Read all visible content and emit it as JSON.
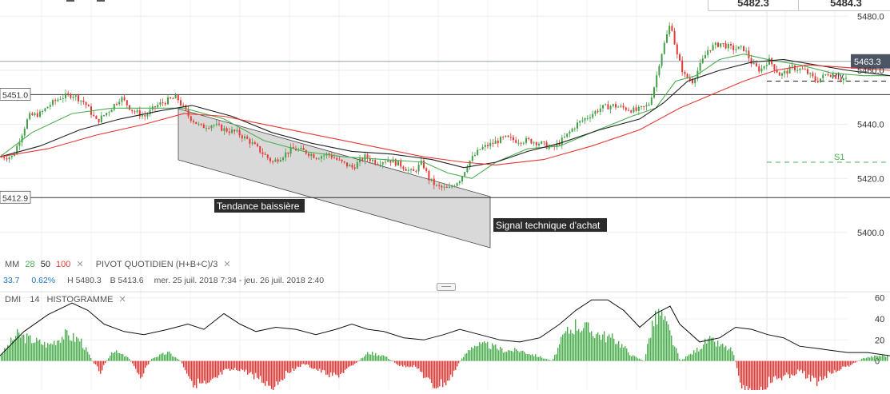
{
  "quote": {
    "bid": "5482.3",
    "ask": "5484.3"
  },
  "chart_data": [
    {
      "type": "candlestick",
      "instrument_info": {
        "high_label": "H 5480.3",
        "low_label": "B 5413.6",
        "range_label": "mer. 25 juil. 2018 7:34 - jeu. 26 juil. 2018 2:40",
        "change": "33.7",
        "change_pct": "0.62%"
      },
      "ylim": [
        5392,
        5486
      ],
      "yticks": [
        5400.0,
        5420.0,
        5440.0,
        5460.0,
        5480.0
      ],
      "ytick_labels": [
        "5400.0",
        "5420.0",
        "5440.0",
        "5460.0",
        "5480.0"
      ],
      "close_path": [
        [
          0,
          5428
        ],
        [
          15,
          5428
        ],
        [
          35,
          5443
        ],
        [
          50,
          5444
        ],
        [
          60,
          5447
        ],
        [
          75,
          5450
        ],
        [
          90,
          5451
        ],
        [
          105,
          5448
        ],
        [
          120,
          5441
        ],
        [
          135,
          5445
        ],
        [
          150,
          5450
        ],
        [
          165,
          5445
        ],
        [
          180,
          5443
        ],
        [
          195,
          5447
        ],
        [
          210,
          5449
        ],
        [
          220,
          5450
        ],
        [
          235,
          5443
        ],
        [
          250,
          5439
        ],
        [
          265,
          5440
        ],
        [
          280,
          5438
        ],
        [
          295,
          5437
        ],
        [
          310,
          5434
        ],
        [
          325,
          5430
        ],
        [
          340,
          5426
        ],
        [
          350,
          5428
        ],
        [
          365,
          5431
        ],
        [
          380,
          5430
        ],
        [
          395,
          5428
        ],
        [
          410,
          5429
        ],
        [
          425,
          5426
        ],
        [
          440,
          5424
        ],
        [
          455,
          5428
        ],
        [
          470,
          5426
        ],
        [
          485,
          5427
        ],
        [
          500,
          5425
        ],
        [
          515,
          5422
        ],
        [
          527,
          5426
        ],
        [
          535,
          5420
        ],
        [
          545,
          5417
        ],
        [
          560,
          5416
        ],
        [
          575,
          5420
        ],
        [
          585,
          5426
        ],
        [
          600,
          5431
        ],
        [
          615,
          5433
        ],
        [
          630,
          5435
        ],
        [
          645,
          5434
        ],
        [
          660,
          5434
        ],
        [
          675,
          5433
        ],
        [
          690,
          5431
        ],
        [
          705,
          5435
        ],
        [
          720,
          5440
        ],
        [
          735,
          5443
        ],
        [
          750,
          5446
        ],
        [
          765,
          5447
        ],
        [
          780,
          5446
        ],
        [
          795,
          5445
        ],
        [
          810,
          5447
        ],
        [
          818,
          5455
        ],
        [
          825,
          5465
        ],
        [
          832,
          5472
        ],
        [
          838,
          5478
        ],
        [
          845,
          5466
        ],
        [
          855,
          5458
        ],
        [
          865,
          5456
        ],
        [
          875,
          5462
        ],
        [
          885,
          5468
        ],
        [
          900,
          5470
        ],
        [
          915,
          5468
        ],
        [
          930,
          5468
        ],
        [
          940,
          5462
        ],
        [
          950,
          5460
        ],
        [
          960,
          5464
        ],
        [
          975,
          5458
        ],
        [
          990,
          5461
        ],
        [
          1005,
          5460
        ],
        [
          1020,
          5456
        ],
        [
          1035,
          5459
        ],
        [
          1050,
          5457
        ],
        [
          1065,
          5457
        ],
        [
          1080,
          5458
        ],
        [
          1095,
          5459
        ],
        [
          1110,
          5459
        ]
      ],
      "moving_averages": [
        {
          "name": "28",
          "color": "#4caf50",
          "points": [
            [
              0,
              5428
            ],
            [
              40,
              5437
            ],
            [
              90,
              5444
            ],
            [
              140,
              5446
            ],
            [
              190,
              5446
            ],
            [
              230,
              5446
            ],
            [
              280,
              5442
            ],
            [
              330,
              5434
            ],
            [
              380,
              5430
            ],
            [
              430,
              5428
            ],
            [
              480,
              5427
            ],
            [
              530,
              5426
            ],
            [
              560,
              5422
            ],
            [
              590,
              5420
            ],
            [
              620,
              5426
            ],
            [
              660,
              5431
            ],
            [
              700,
              5432
            ],
            [
              740,
              5437
            ],
            [
              790,
              5443
            ],
            [
              820,
              5446
            ],
            [
              845,
              5456
            ],
            [
              870,
              5458
            ],
            [
              900,
              5464
            ],
            [
              930,
              5466
            ],
            [
              960,
              5464
            ],
            [
              1000,
              5462
            ],
            [
              1040,
              5459
            ],
            [
              1080,
              5458
            ],
            [
              1113,
              5458
            ]
          ]
        },
        {
          "name": "50",
          "color": "#222222",
          "points": [
            [
              0,
              5428
            ],
            [
              50,
              5432
            ],
            [
              100,
              5438
            ],
            [
              150,
              5442
            ],
            [
              200,
              5445
            ],
            [
              240,
              5447
            ],
            [
              290,
              5443
            ],
            [
              340,
              5437
            ],
            [
              390,
              5433
            ],
            [
              440,
              5430
            ],
            [
              490,
              5429
            ],
            [
              540,
              5427
            ],
            [
              580,
              5424
            ],
            [
              620,
              5426
            ],
            [
              660,
              5430
            ],
            [
              700,
              5433
            ],
            [
              750,
              5438
            ],
            [
              800,
              5442
            ],
            [
              830,
              5448
            ],
            [
              860,
              5456
            ],
            [
              900,
              5460
            ],
            [
              940,
              5463
            ],
            [
              980,
              5464
            ],
            [
              1020,
              5462
            ],
            [
              1060,
              5460
            ],
            [
              1113,
              5458
            ]
          ]
        },
        {
          "name": "100",
          "color": "#e53935",
          "points": [
            [
              0,
              5428
            ],
            [
              60,
              5431
            ],
            [
              120,
              5436
            ],
            [
              180,
              5440
            ],
            [
              230,
              5444
            ],
            [
              280,
              5443
            ],
            [
              330,
              5440
            ],
            [
              380,
              5437
            ],
            [
              430,
              5434
            ],
            [
              480,
              5431
            ],
            [
              530,
              5428
            ],
            [
              580,
              5426
            ],
            [
              620,
              5425
            ],
            [
              680,
              5427
            ],
            [
              740,
              5432
            ],
            [
              800,
              5438
            ],
            [
              850,
              5446
            ],
            [
              890,
              5451
            ],
            [
              930,
              5456
            ],
            [
              970,
              5460
            ],
            [
              1010,
              5462
            ],
            [
              1060,
              5461
            ],
            [
              1113,
              5460
            ]
          ]
        }
      ],
      "horizontal_levels": [
        {
          "value": 5451.0,
          "label": "5451.0",
          "color": "#333333"
        },
        {
          "value": 5412.9,
          "label": "5412.9",
          "color": "#333333"
        },
        {
          "value": 5463.3,
          "label": "5463.3",
          "color": "#8894a3"
        }
      ],
      "pivot_levels": [
        {
          "name": "Piv",
          "value": 5456.0,
          "color": "#222222"
        },
        {
          "name": "S1",
          "value": 5426.0,
          "color": "#4caf50"
        }
      ],
      "channel_label": "Tendance baissière",
      "signal_label": "Signal technique d'achat",
      "ma_legend": {
        "name": "MM",
        "periods": [
          "28",
          "50",
          "100"
        ],
        "colors": [
          "#4caf50",
          "#222222",
          "#e53935"
        ]
      },
      "pivot_legend": "PIVOT  QUOTIDIEN  (H+B+C)/3"
    },
    {
      "type": "histogram",
      "name": "DMI",
      "period": "14",
      "mode": "HISTOGRAMME",
      "ylim": [
        -20,
        65
      ],
      "yticks": [
        0,
        20,
        40,
        60
      ],
      "ytick_labels": [
        "0",
        "20",
        "40",
        "60"
      ],
      "histogram": [
        [
          0,
          5
        ],
        [
          20,
          25
        ],
        [
          40,
          20
        ],
        [
          60,
          15
        ],
        [
          80,
          25
        ],
        [
          100,
          20
        ],
        [
          115,
          0
        ],
        [
          125,
          -10
        ],
        [
          140,
          10
        ],
        [
          160,
          3
        ],
        [
          175,
          -15
        ],
        [
          190,
          3
        ],
        [
          210,
          8
        ],
        [
          225,
          0
        ],
        [
          240,
          -20
        ],
        [
          260,
          -25
        ],
        [
          280,
          -10
        ],
        [
          300,
          -8
        ],
        [
          320,
          -15
        ],
        [
          340,
          -25
        ],
        [
          360,
          -10
        ],
        [
          380,
          -3
        ],
        [
          400,
          -10
        ],
        [
          420,
          -15
        ],
        [
          440,
          -5
        ],
        [
          460,
          8
        ],
        [
          480,
          5
        ],
        [
          500,
          -5
        ],
        [
          520,
          -5
        ],
        [
          540,
          -25
        ],
        [
          560,
          -20
        ],
        [
          575,
          0
        ],
        [
          590,
          15
        ],
        [
          610,
          15
        ],
        [
          630,
          10
        ],
        [
          650,
          10
        ],
        [
          670,
          5
        ],
        [
          690,
          0
        ],
        [
          705,
          25
        ],
        [
          720,
          35
        ],
        [
          735,
          30
        ],
        [
          750,
          25
        ],
        [
          770,
          20
        ],
        [
          790,
          5
        ],
        [
          805,
          0
        ],
        [
          815,
          35
        ],
        [
          825,
          45
        ],
        [
          835,
          30
        ],
        [
          850,
          0
        ],
        [
          870,
          10
        ],
        [
          885,
          20
        ],
        [
          900,
          15
        ],
        [
          915,
          10
        ],
        [
          930,
          -30
        ],
        [
          945,
          -35
        ],
        [
          960,
          -20
        ],
        [
          980,
          -15
        ],
        [
          1000,
          -10
        ],
        [
          1020,
          -20
        ],
        [
          1040,
          -10
        ],
        [
          1060,
          -5
        ],
        [
          1080,
          3
        ],
        [
          1100,
          5
        ],
        [
          1113,
          5
        ]
      ],
      "adx_points": [
        [
          0,
          5
        ],
        [
          30,
          28
        ],
        [
          60,
          44
        ],
        [
          90,
          55
        ],
        [
          110,
          48
        ],
        [
          130,
          35
        ],
        [
          155,
          28
        ],
        [
          180,
          25
        ],
        [
          210,
          30
        ],
        [
          235,
          35
        ],
        [
          255,
          30
        ],
        [
          280,
          45
        ],
        [
          300,
          35
        ],
        [
          320,
          28
        ],
        [
          345,
          32
        ],
        [
          370,
          30
        ],
        [
          395,
          25
        ],
        [
          420,
          30
        ],
        [
          440,
          35
        ],
        [
          460,
          30
        ],
        [
          480,
          28
        ],
        [
          505,
          22
        ],
        [
          530,
          20
        ],
        [
          555,
          25
        ],
        [
          575,
          30
        ],
        [
          600,
          25
        ],
        [
          625,
          20
        ],
        [
          650,
          18
        ],
        [
          675,
          22
        ],
        [
          700,
          35
        ],
        [
          720,
          48
        ],
        [
          740,
          58
        ],
        [
          760,
          58
        ],
        [
          780,
          48
        ],
        [
          800,
          32
        ],
        [
          820,
          45
        ],
        [
          838,
          52
        ],
        [
          850,
          35
        ],
        [
          875,
          18
        ],
        [
          900,
          22
        ],
        [
          920,
          32
        ],
        [
          940,
          30
        ],
        [
          960,
          25
        ],
        [
          980,
          22
        ],
        [
          1000,
          14
        ],
        [
          1020,
          12
        ],
        [
          1040,
          10
        ],
        [
          1060,
          8
        ],
        [
          1085,
          8
        ],
        [
          1113,
          5
        ]
      ]
    }
  ]
}
